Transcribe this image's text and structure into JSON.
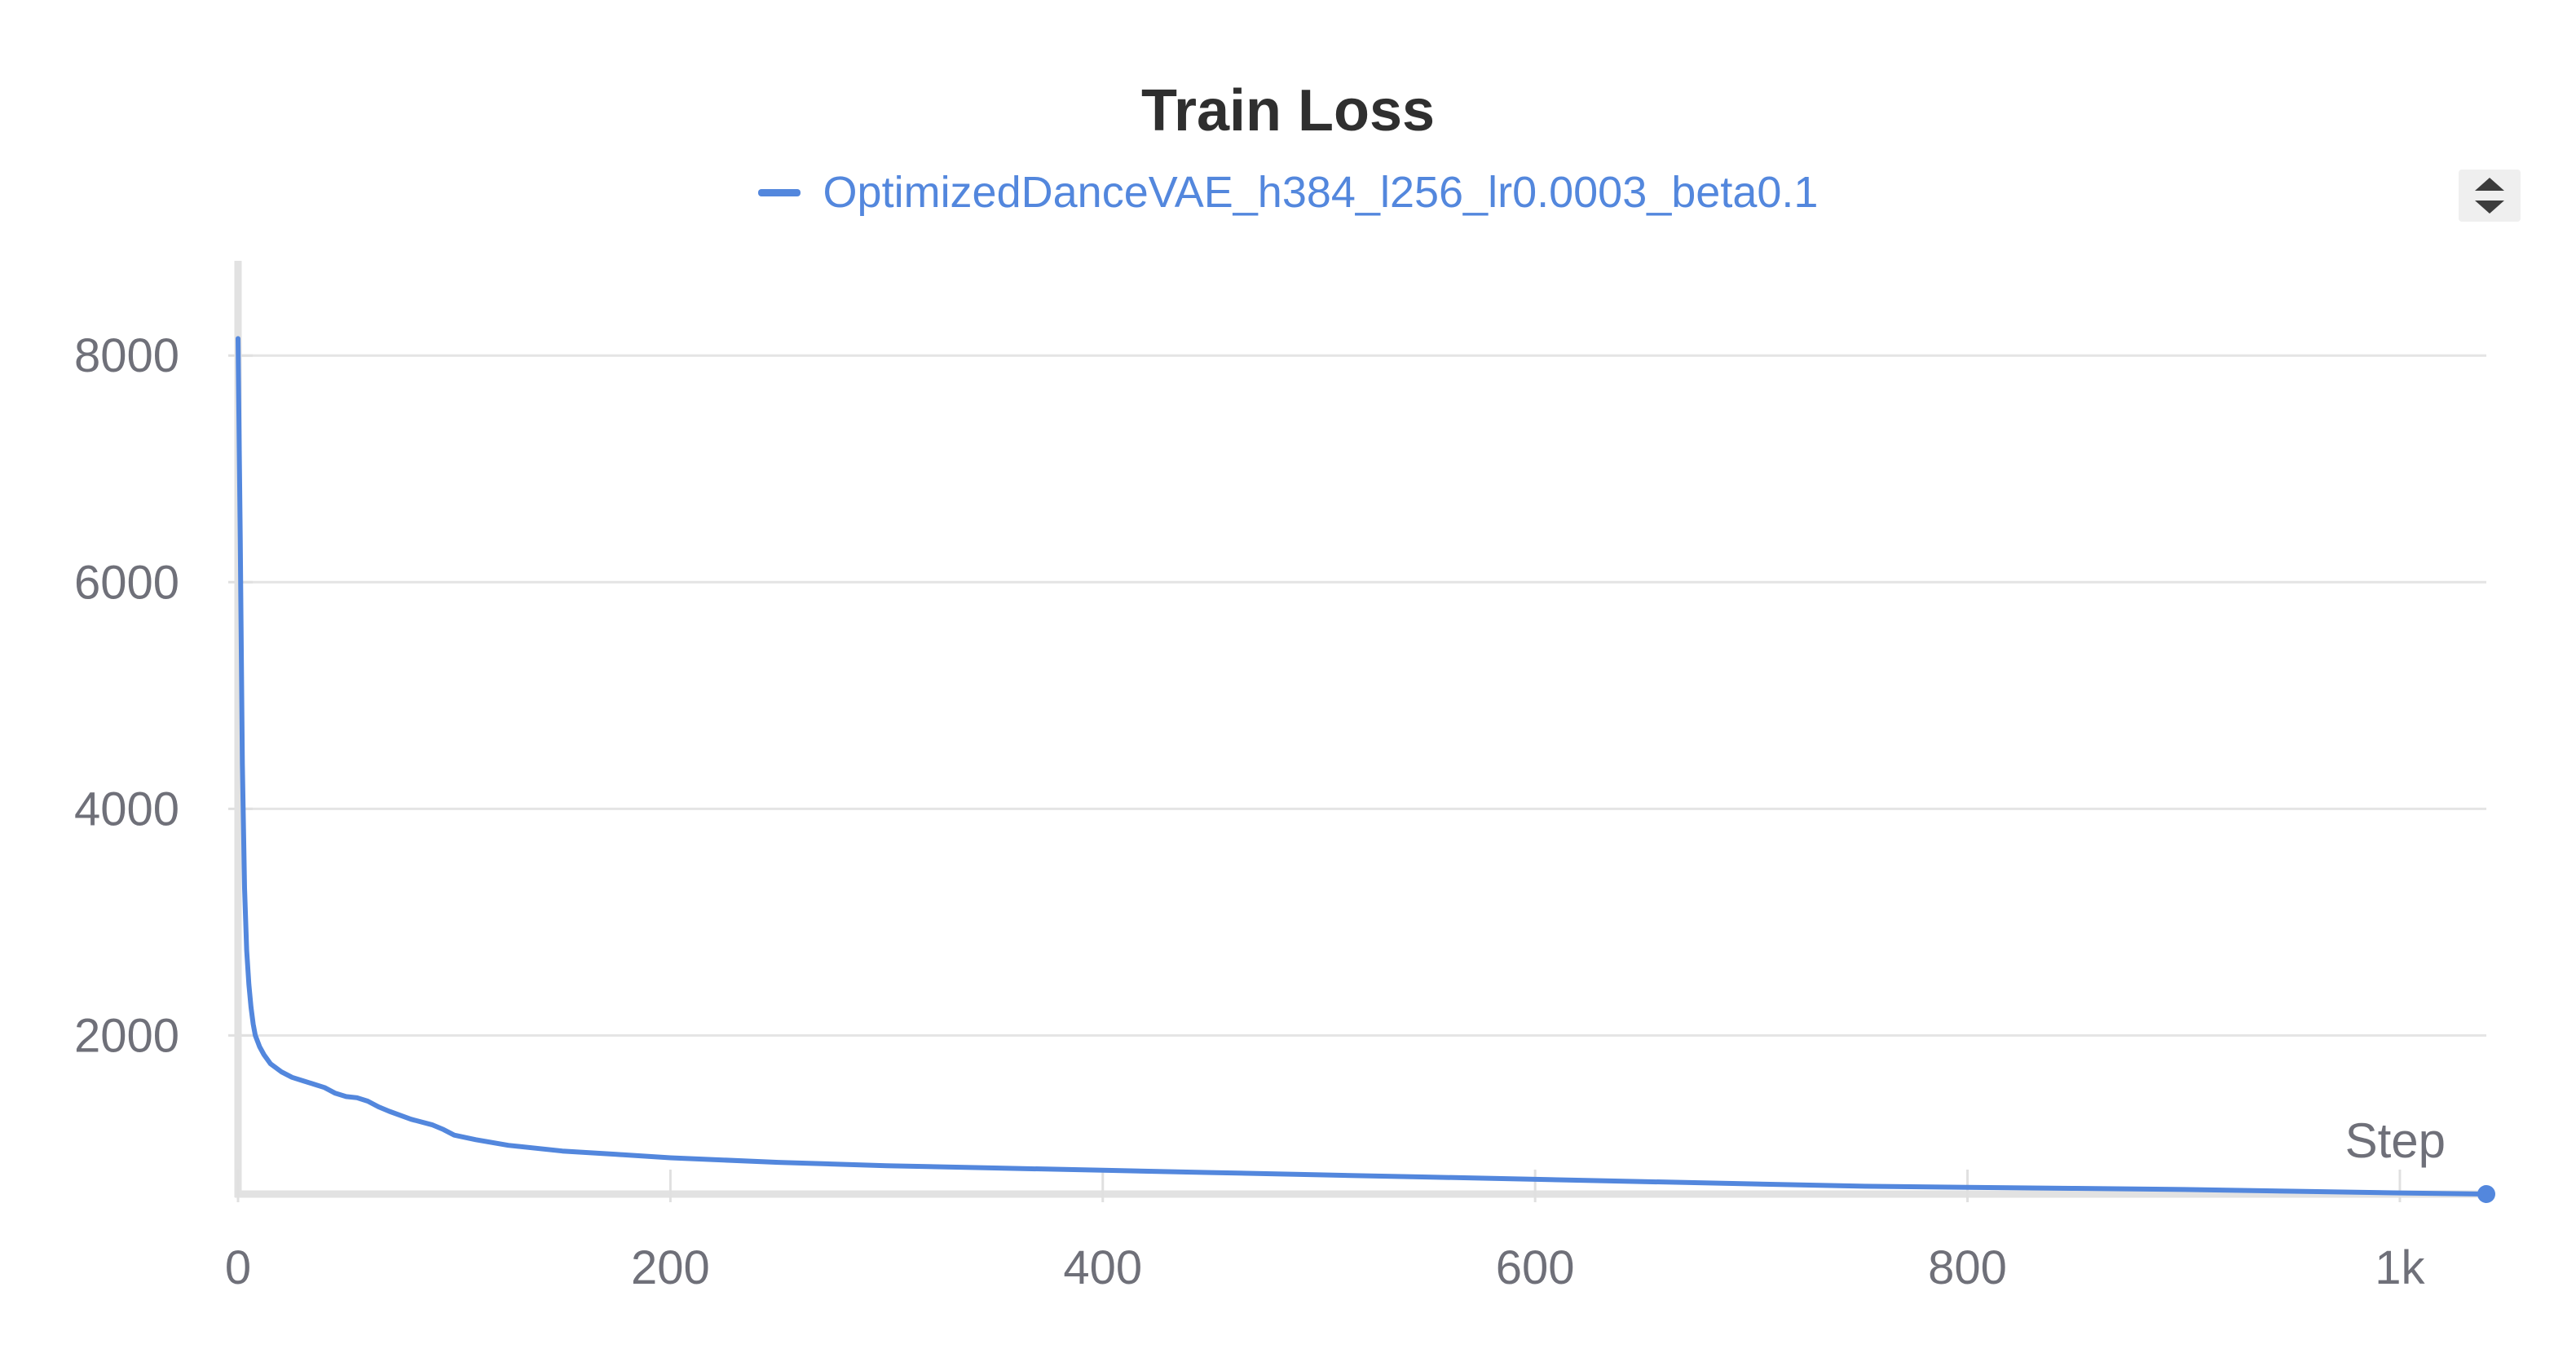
{
  "chart_data": {
    "type": "line",
    "title": "Train Loss",
    "xlabel": "Step",
    "ylabel": "",
    "xlim": [
      0,
      1040
    ],
    "ylim": [
      600,
      8800
    ],
    "xticks": [
      0,
      200,
      400,
      600,
      800,
      1000
    ],
    "xtick_labels": [
      "0",
      "200",
      "400",
      "600",
      "800",
      "1k"
    ],
    "yticks": [
      2000,
      4000,
      6000,
      8000
    ],
    "ytick_labels": [
      "2000",
      "4000",
      "6000",
      "8000"
    ],
    "grid": "horizontal",
    "legend_position": "top-center",
    "series": [
      {
        "name": "OptimizedDanceVAE_h384_l256_lr0.0003_beta0.1",
        "color": "#5387dd",
        "x": [
          0,
          1,
          2,
          3,
          4,
          5,
          6,
          7,
          8,
          10,
          12,
          15,
          20,
          25,
          30,
          35,
          40,
          45,
          50,
          55,
          60,
          65,
          70,
          80,
          90,
          95,
          100,
          110,
          125,
          150,
          175,
          200,
          250,
          300,
          350,
          400,
          450,
          500,
          550,
          600,
          650,
          700,
          750,
          800,
          850,
          900,
          950,
          1000,
          1040
        ],
        "y": [
          8150,
          6400,
          4400,
          3300,
          2750,
          2450,
          2250,
          2100,
          2000,
          1900,
          1830,
          1750,
          1680,
          1630,
          1600,
          1570,
          1540,
          1490,
          1460,
          1450,
          1420,
          1370,
          1330,
          1260,
          1210,
          1170,
          1120,
          1080,
          1030,
          980,
          950,
          920,
          880,
          850,
          830,
          810,
          790,
          770,
          750,
          730,
          710,
          690,
          670,
          660,
          650,
          640,
          625,
          610,
          600
        ]
      }
    ]
  },
  "ui": {
    "scroll_up_icon": "triangle-up-icon",
    "scroll_down_icon": "triangle-down-icon"
  }
}
